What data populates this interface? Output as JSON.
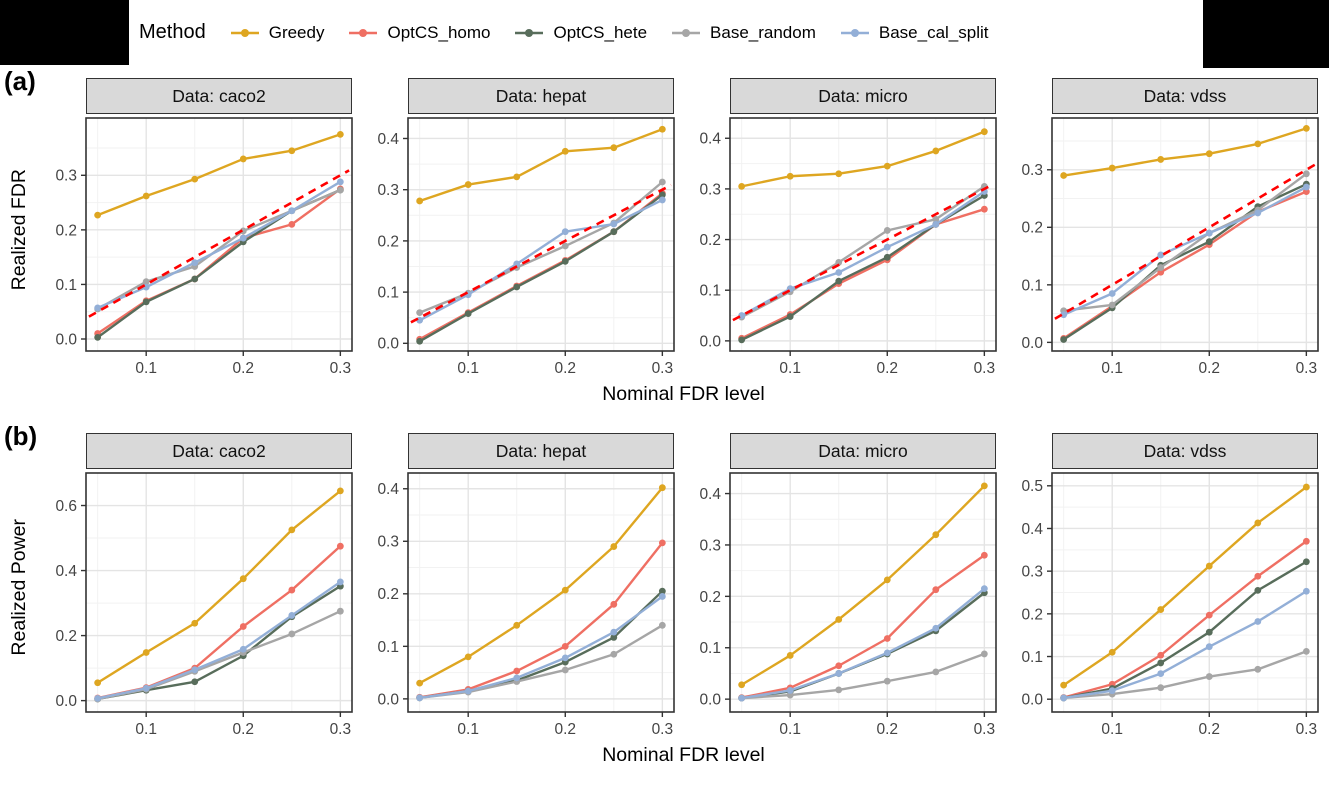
{
  "legend": {
    "title": "Method",
    "items": [
      {
        "label": "Greedy",
        "color": "#DEA621"
      },
      {
        "label": "OptCS_homo",
        "color": "#EF6F63"
      },
      {
        "label": "OptCS_hete",
        "color": "#586D5B"
      },
      {
        "label": "Base_random",
        "color": "#A6A6A6"
      },
      {
        "label": "Base_cal_split",
        "color": "#93AFD7"
      }
    ]
  },
  "panel_labels": {
    "a": "(a)",
    "b": "(b)"
  },
  "colors": {
    "reference_line": "#FF0000",
    "strip_background": "#D9D9D9",
    "panel_border": "#333333",
    "grid_major": "#E4E4E4",
    "grid_minor": "#F2F2F2",
    "tick_text": "#444444"
  },
  "chart_data": {
    "type": "line",
    "x": [
      0.05,
      0.1,
      0.15,
      0.2,
      0.25,
      0.3
    ],
    "xticks": [
      0.1,
      0.2,
      0.3
    ],
    "xtick_labels": [
      "0.1",
      "0.2",
      "0.3"
    ],
    "xminor": [
      0.05,
      0.15,
      0.25
    ],
    "xlim": [
      0.038,
      0.312
    ],
    "xlabel": "Nominal FDR level",
    "series_order": [
      "Greedy",
      "OptCS_homo",
      "OptCS_hete",
      "Base_random",
      "Base_cal_split"
    ],
    "rows": [
      {
        "id": "a",
        "ylabel": "Realized FDR",
        "reference_line": {
          "show": true,
          "equation": "y = x",
          "style": "dashed",
          "color": "#FF0000"
        },
        "panels": [
          {
            "facet": "Data: caco2",
            "yticks": [
              0.0,
              0.1,
              0.2,
              0.3
            ],
            "ytick_labels": [
              "0.0",
              "0.1",
              "0.2",
              "0.3"
            ],
            "ylim": [
              -0.022,
              0.405
            ],
            "series": {
              "Greedy": [
                0.227,
                0.262,
                0.293,
                0.33,
                0.345,
                0.375
              ],
              "OptCS_homo": [
                0.01,
                0.07,
                0.11,
                0.185,
                0.21,
                0.275
              ],
              "OptCS_hete": [
                0.003,
                0.068,
                0.11,
                0.178,
                0.235,
                0.273
              ],
              "Base_random": [
                0.055,
                0.105,
                0.133,
                0.198,
                0.235,
                0.273
              ],
              "Base_cal_split": [
                0.057,
                0.095,
                0.14,
                0.185,
                0.235,
                0.288
              ]
            }
          },
          {
            "facet": "Data: hepat",
            "yticks": [
              0.0,
              0.1,
              0.2,
              0.3,
              0.4
            ],
            "ytick_labels": [
              "0.0",
              "0.1",
              "0.2",
              "0.3",
              "0.4"
            ],
            "ylim": [
              -0.015,
              0.44
            ],
            "series": {
              "Greedy": [
                0.278,
                0.31,
                0.325,
                0.375,
                0.382,
                0.418
              ],
              "OptCS_homo": [
                0.008,
                0.06,
                0.112,
                0.162,
                0.218,
                0.293
              ],
              "OptCS_hete": [
                0.004,
                0.058,
                0.11,
                0.16,
                0.218,
                0.29
              ],
              "Base_random": [
                0.06,
                0.098,
                0.148,
                0.19,
                0.235,
                0.315
              ],
              "Base_cal_split": [
                0.045,
                0.095,
                0.155,
                0.218,
                0.233,
                0.28
              ]
            }
          },
          {
            "facet": "Data: micro",
            "yticks": [
              0.0,
              0.1,
              0.2,
              0.3,
              0.4
            ],
            "ytick_labels": [
              "0.0",
              "0.1",
              "0.2",
              "0.3",
              "0.4"
            ],
            "ylim": [
              -0.02,
              0.44
            ],
            "series": {
              "Greedy": [
                0.305,
                0.325,
                0.33,
                0.345,
                0.375,
                0.413
              ],
              "OptCS_homo": [
                0.005,
                0.052,
                0.113,
                0.16,
                0.23,
                0.26
              ],
              "OptCS_hete": [
                0.002,
                0.048,
                0.118,
                0.165,
                0.23,
                0.287
              ],
              "Base_random": [
                0.047,
                0.097,
                0.155,
                0.218,
                0.24,
                0.305
              ],
              "Base_cal_split": [
                0.05,
                0.103,
                0.135,
                0.185,
                0.23,
                0.295
              ]
            }
          },
          {
            "facet": "Data: vdss",
            "yticks": [
              0.0,
              0.1,
              0.2,
              0.3
            ],
            "ytick_labels": [
              "0.0",
              "0.1",
              "0.2",
              "0.3"
            ],
            "ylim": [
              -0.015,
              0.39
            ],
            "series": {
              "Greedy": [
                0.29,
                0.303,
                0.318,
                0.328,
                0.345,
                0.372
              ],
              "OptCS_homo": [
                0.007,
                0.063,
                0.122,
                0.17,
                0.227,
                0.262
              ],
              "OptCS_hete": [
                0.005,
                0.06,
                0.134,
                0.175,
                0.236,
                0.275
              ],
              "Base_random": [
                0.055,
                0.065,
                0.13,
                0.19,
                0.23,
                0.293
              ],
              "Base_cal_split": [
                0.048,
                0.085,
                0.152,
                0.19,
                0.225,
                0.27
              ]
            }
          }
        ]
      },
      {
        "id": "b",
        "ylabel": "Realized Power",
        "reference_line": {
          "show": false
        },
        "panels": [
          {
            "facet": "Data: caco2",
            "yticks": [
              0.0,
              0.2,
              0.4,
              0.6
            ],
            "ytick_labels": [
              "0.0",
              "0.2",
              "0.4",
              "0.6"
            ],
            "ylim": [
              -0.035,
              0.7
            ],
            "series": {
              "Greedy": [
                0.055,
                0.148,
                0.238,
                0.375,
                0.525,
                0.645
              ],
              "OptCS_homo": [
                0.008,
                0.04,
                0.1,
                0.228,
                0.34,
                0.475
              ],
              "OptCS_hete": [
                0.005,
                0.032,
                0.058,
                0.138,
                0.258,
                0.352
              ],
              "Base_random": [
                0.005,
                0.035,
                0.09,
                0.148,
                0.205,
                0.275
              ],
              "Base_cal_split": [
                0.007,
                0.038,
                0.095,
                0.158,
                0.262,
                0.365
              ]
            }
          },
          {
            "facet": "Data: hepat",
            "yticks": [
              0.0,
              0.1,
              0.2,
              0.3,
              0.4
            ],
            "ytick_labels": [
              "0.0",
              "0.1",
              "0.2",
              "0.3",
              "0.4"
            ],
            "ylim": [
              -0.025,
              0.43
            ],
            "series": {
              "Greedy": [
                0.03,
                0.08,
                0.14,
                0.207,
                0.29,
                0.402
              ],
              "OptCS_homo": [
                0.003,
                0.018,
                0.053,
                0.1,
                0.18,
                0.297
              ],
              "OptCS_hete": [
                0.002,
                0.015,
                0.035,
                0.07,
                0.117,
                0.205
              ],
              "Base_random": [
                0.002,
                0.013,
                0.033,
                0.055,
                0.085,
                0.14
              ],
              "Base_cal_split": [
                0.002,
                0.015,
                0.04,
                0.078,
                0.127,
                0.195
              ]
            }
          },
          {
            "facet": "Data: micro",
            "yticks": [
              0.0,
              0.1,
              0.2,
              0.3,
              0.4
            ],
            "ytick_labels": [
              "0.0",
              "0.1",
              "0.2",
              "0.3",
              "0.4"
            ],
            "ylim": [
              -0.025,
              0.44
            ],
            "series": {
              "Greedy": [
                0.028,
                0.085,
                0.155,
                0.232,
                0.32,
                0.415
              ],
              "OptCS_homo": [
                0.003,
                0.022,
                0.065,
                0.118,
                0.213,
                0.28
              ],
              "OptCS_hete": [
                0.002,
                0.015,
                0.05,
                0.088,
                0.133,
                0.207
              ],
              "Base_random": [
                0.002,
                0.008,
                0.018,
                0.035,
                0.053,
                0.088
              ],
              "Base_cal_split": [
                0.002,
                0.017,
                0.05,
                0.09,
                0.138,
                0.215
              ]
            }
          },
          {
            "facet": "Data: vdss",
            "yticks": [
              0.0,
              0.1,
              0.2,
              0.3,
              0.4,
              0.5
            ],
            "ytick_labels": [
              "0.0",
              "0.1",
              "0.2",
              "0.3",
              "0.4",
              "0.5"
            ],
            "ylim": [
              -0.03,
              0.53
            ],
            "series": {
              "Greedy": [
                0.033,
                0.11,
                0.21,
                0.312,
                0.413,
                0.497
              ],
              "OptCS_homo": [
                0.004,
                0.035,
                0.103,
                0.197,
                0.288,
                0.37
              ],
              "OptCS_hete": [
                0.003,
                0.025,
                0.085,
                0.157,
                0.255,
                0.322
              ],
              "Base_random": [
                0.003,
                0.012,
                0.027,
                0.053,
                0.07,
                0.112
              ],
              "Base_cal_split": [
                0.003,
                0.02,
                0.06,
                0.123,
                0.182,
                0.253
              ]
            }
          }
        ]
      }
    ]
  }
}
